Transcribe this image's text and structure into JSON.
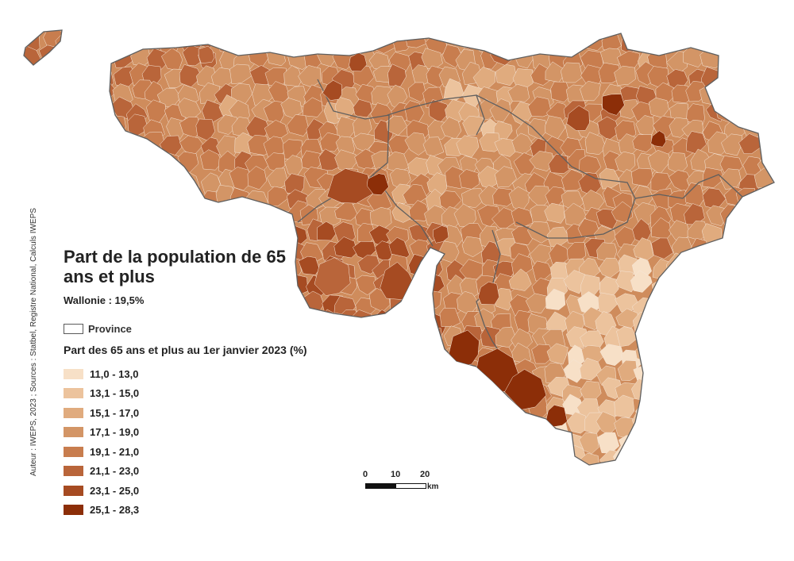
{
  "title": "Part de la population de 65 ans et plus",
  "region_value": "Wallonie : 19,5%",
  "province_label": "Province",
  "legend_title": "Part des 65 ans et plus au 1er janvier 2023 (%)",
  "legend": [
    {
      "label": "11,0 - 13,0",
      "color": "#f7e0c7"
    },
    {
      "label": "13,1 - 15,0",
      "color": "#ecc39d"
    },
    {
      "label": "15,1 - 17,0",
      "color": "#e0ab7e"
    },
    {
      "label": "17,1 - 19,0",
      "color": "#d39566"
    },
    {
      "label": "19,1 - 21,0",
      "color": "#c87d4e"
    },
    {
      "label": "21,1 - 23,0",
      "color": "#b9653a"
    },
    {
      "label": "23,1 - 25,0",
      "color": "#a64b22"
    },
    {
      "label": "25,1 - 28,3",
      "color": "#8c2e08"
    }
  ],
  "credit": "Auteur : IWEPS, 2023 ; Sources : Statbel, Registre National, Calculs IWEPS",
  "scale": {
    "labels": [
      "0",
      "10",
      "20"
    ],
    "unit": "km"
  },
  "colors": {
    "province_border": "#5f5f5f",
    "commune_border": "#f5e6d8"
  }
}
